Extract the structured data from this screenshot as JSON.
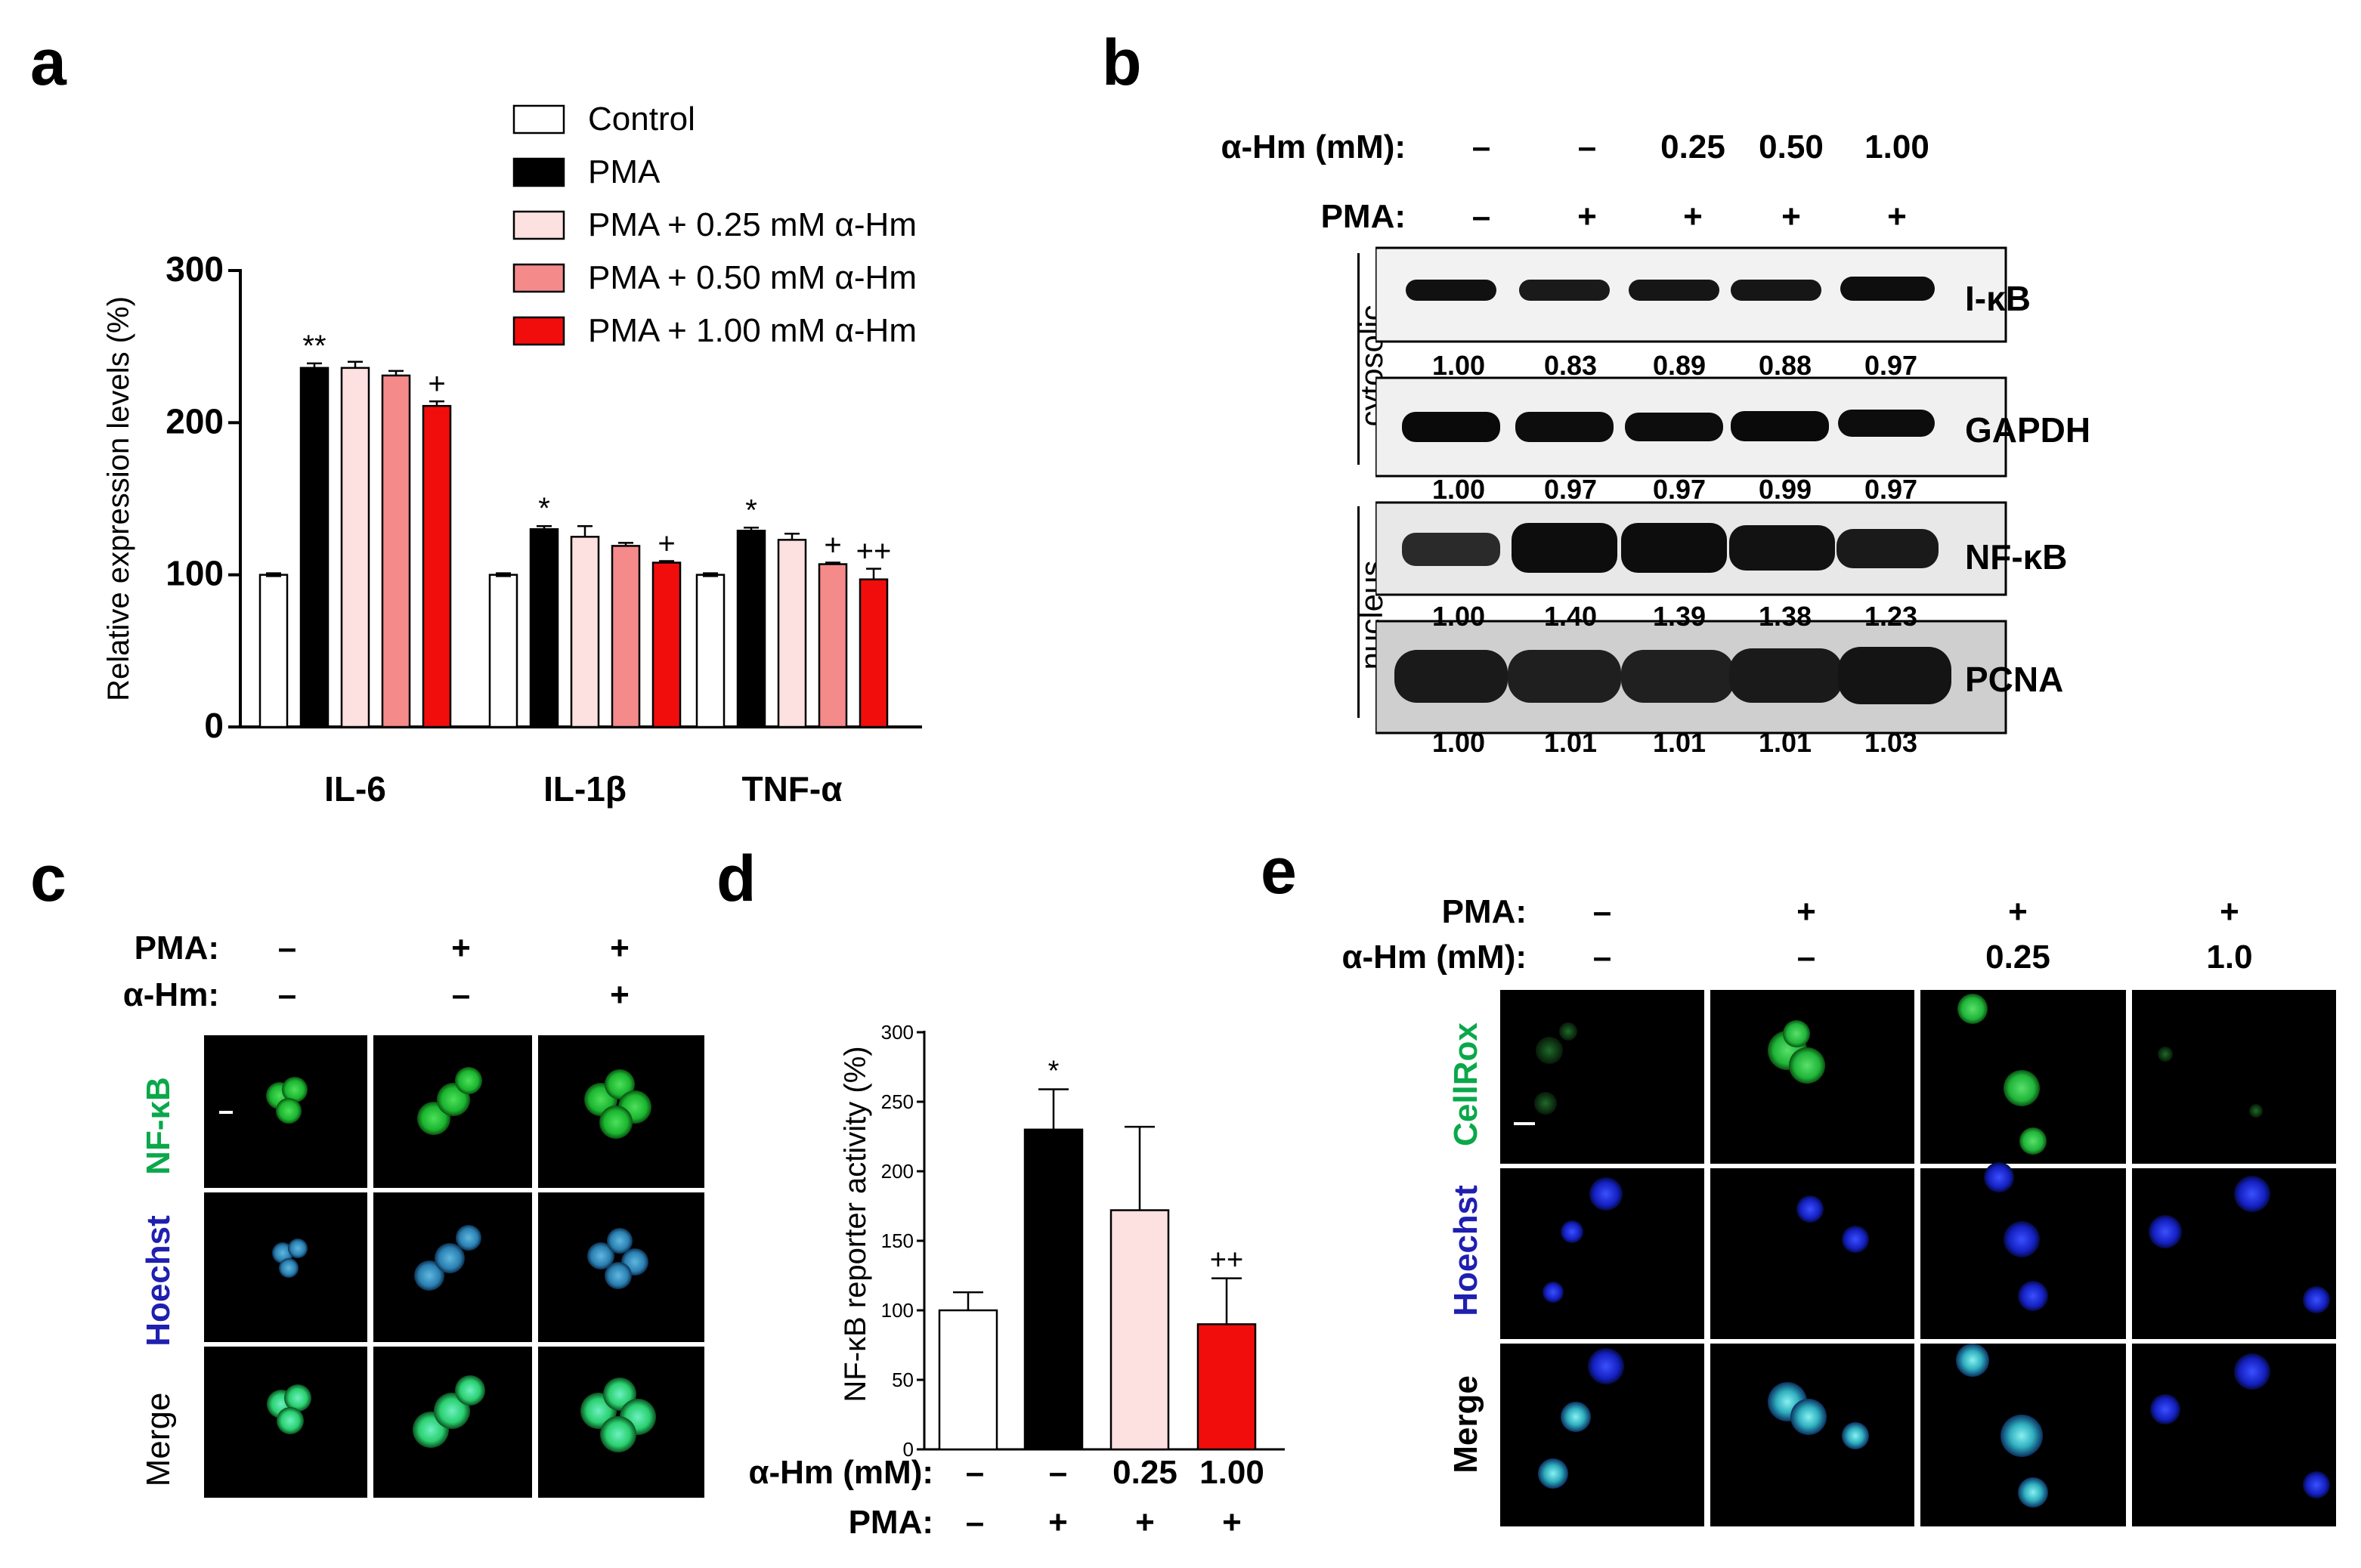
{
  "panels": {
    "a": {
      "letter": "a",
      "legend": [
        "Control",
        "PMA",
        "PMA + 0.25 mM α-Hm",
        "PMA + 0.50 mM α-Hm",
        "PMA + 1.00 mM α-Hm"
      ],
      "ylabel": "Relative expression levels (%)"
    },
    "b": {
      "letter": "b",
      "row1_label": "α-Hm (mM):",
      "row1_values": [
        "–",
        "–",
        "0.25",
        "0.50",
        "1.00"
      ],
      "row2_label": "PMA:",
      "row2_values": [
        "–",
        "+",
        "+",
        "+",
        "+"
      ],
      "fraction_cytosolic": "cytosolic",
      "fraction_nucleus": "nucleus",
      "blots": [
        {
          "label": "I-κB",
          "quant": [
            "1.00",
            "0.83",
            "0.89",
            "0.88",
            "0.97"
          ]
        },
        {
          "label": "GAPDH",
          "quant": [
            "1.00",
            "0.97",
            "0.97",
            "0.99",
            "0.97"
          ]
        },
        {
          "label": "NF-κB",
          "quant": [
            "1.00",
            "1.40",
            "1.39",
            "1.38",
            "1.23"
          ]
        },
        {
          "label": "PCNA",
          "quant": [
            "1.00",
            "1.01",
            "1.01",
            "1.01",
            "1.03"
          ]
        }
      ]
    },
    "c": {
      "letter": "c",
      "row1_label": "PMA:",
      "row1_values": [
        "–",
        "+",
        "+"
      ],
      "row2_label": "α-Hm:",
      "row2_values": [
        "–",
        "–",
        "+"
      ],
      "rows": [
        "NF-κB",
        "Hoechst",
        "Merge"
      ]
    },
    "d": {
      "letter": "d",
      "ylabel": "NF-κB reporter activity (%)",
      "row1_label": "α-Hm (mM):",
      "row1_values": [
        "–",
        "–",
        "0.25",
        "1.00"
      ],
      "row2_label": "PMA:",
      "row2_values": [
        "–",
        "+",
        "+",
        "+"
      ]
    },
    "e": {
      "letter": "e",
      "row1_label": "PMA:",
      "row1_values": [
        "–",
        "+",
        "+",
        "+"
      ],
      "row2_label": "α-Hm (mM):",
      "row2_values": [
        "–",
        "–",
        "0.25",
        "1.0"
      ],
      "rows": [
        "CellRox",
        "Hoechst",
        "Merge"
      ]
    }
  },
  "colors": {
    "control": "#ffffff",
    "pma": "#000000",
    "hm025": "#fde0e0",
    "hm050": "#f58a8a",
    "hm100": "#f20d0d",
    "green_label": "#0aa84a",
    "blue_label": "#1f1fb0"
  },
  "chart_data": [
    {
      "type": "bar",
      "panel": "a",
      "categories": [
        "IL-6",
        "IL-1β",
        "TNF-α"
      ],
      "series": [
        {
          "name": "Control",
          "values": [
            100,
            100,
            100
          ],
          "errors": [
            1,
            1,
            1
          ]
        },
        {
          "name": "PMA",
          "values": [
            236,
            130,
            129
          ],
          "errors": [
            3,
            2,
            2
          ]
        },
        {
          "name": "PMA + 0.25 mM α-Hm",
          "values": [
            236,
            125,
            123
          ],
          "errors": [
            4,
            7,
            4
          ]
        },
        {
          "name": "PMA + 0.50 mM α-Hm",
          "values": [
            231,
            119,
            107
          ],
          "errors": [
            3,
            2,
            1
          ]
        },
        {
          "name": "PMA + 1.00 mM α-Hm",
          "values": [
            211,
            108,
            97
          ],
          "errors": [
            3,
            1,
            7
          ]
        }
      ],
      "annotations": [
        [
          "**",
          "+"
        ],
        [
          "*",
          "+"
        ],
        [
          "*",
          "+",
          "++"
        ]
      ],
      "ylabel": "Relative expression levels (%)",
      "ylim": [
        0,
        300
      ],
      "yticks": [
        "0",
        "100",
        "200",
        "300"
      ]
    },
    {
      "type": "bar",
      "panel": "d",
      "categories": [
        "1",
        "2",
        "3",
        "4"
      ],
      "values": [
        100,
        230,
        172,
        90
      ],
      "errors": [
        13,
        29,
        60,
        33
      ],
      "annotations": [
        "",
        "*",
        "",
        "++"
      ],
      "ylabel": "NF-κB reporter activity (%)",
      "ylim": [
        0,
        300
      ],
      "yticks": [
        "0",
        "50",
        "100",
        "150",
        "200",
        "250",
        "300"
      ]
    }
  ]
}
